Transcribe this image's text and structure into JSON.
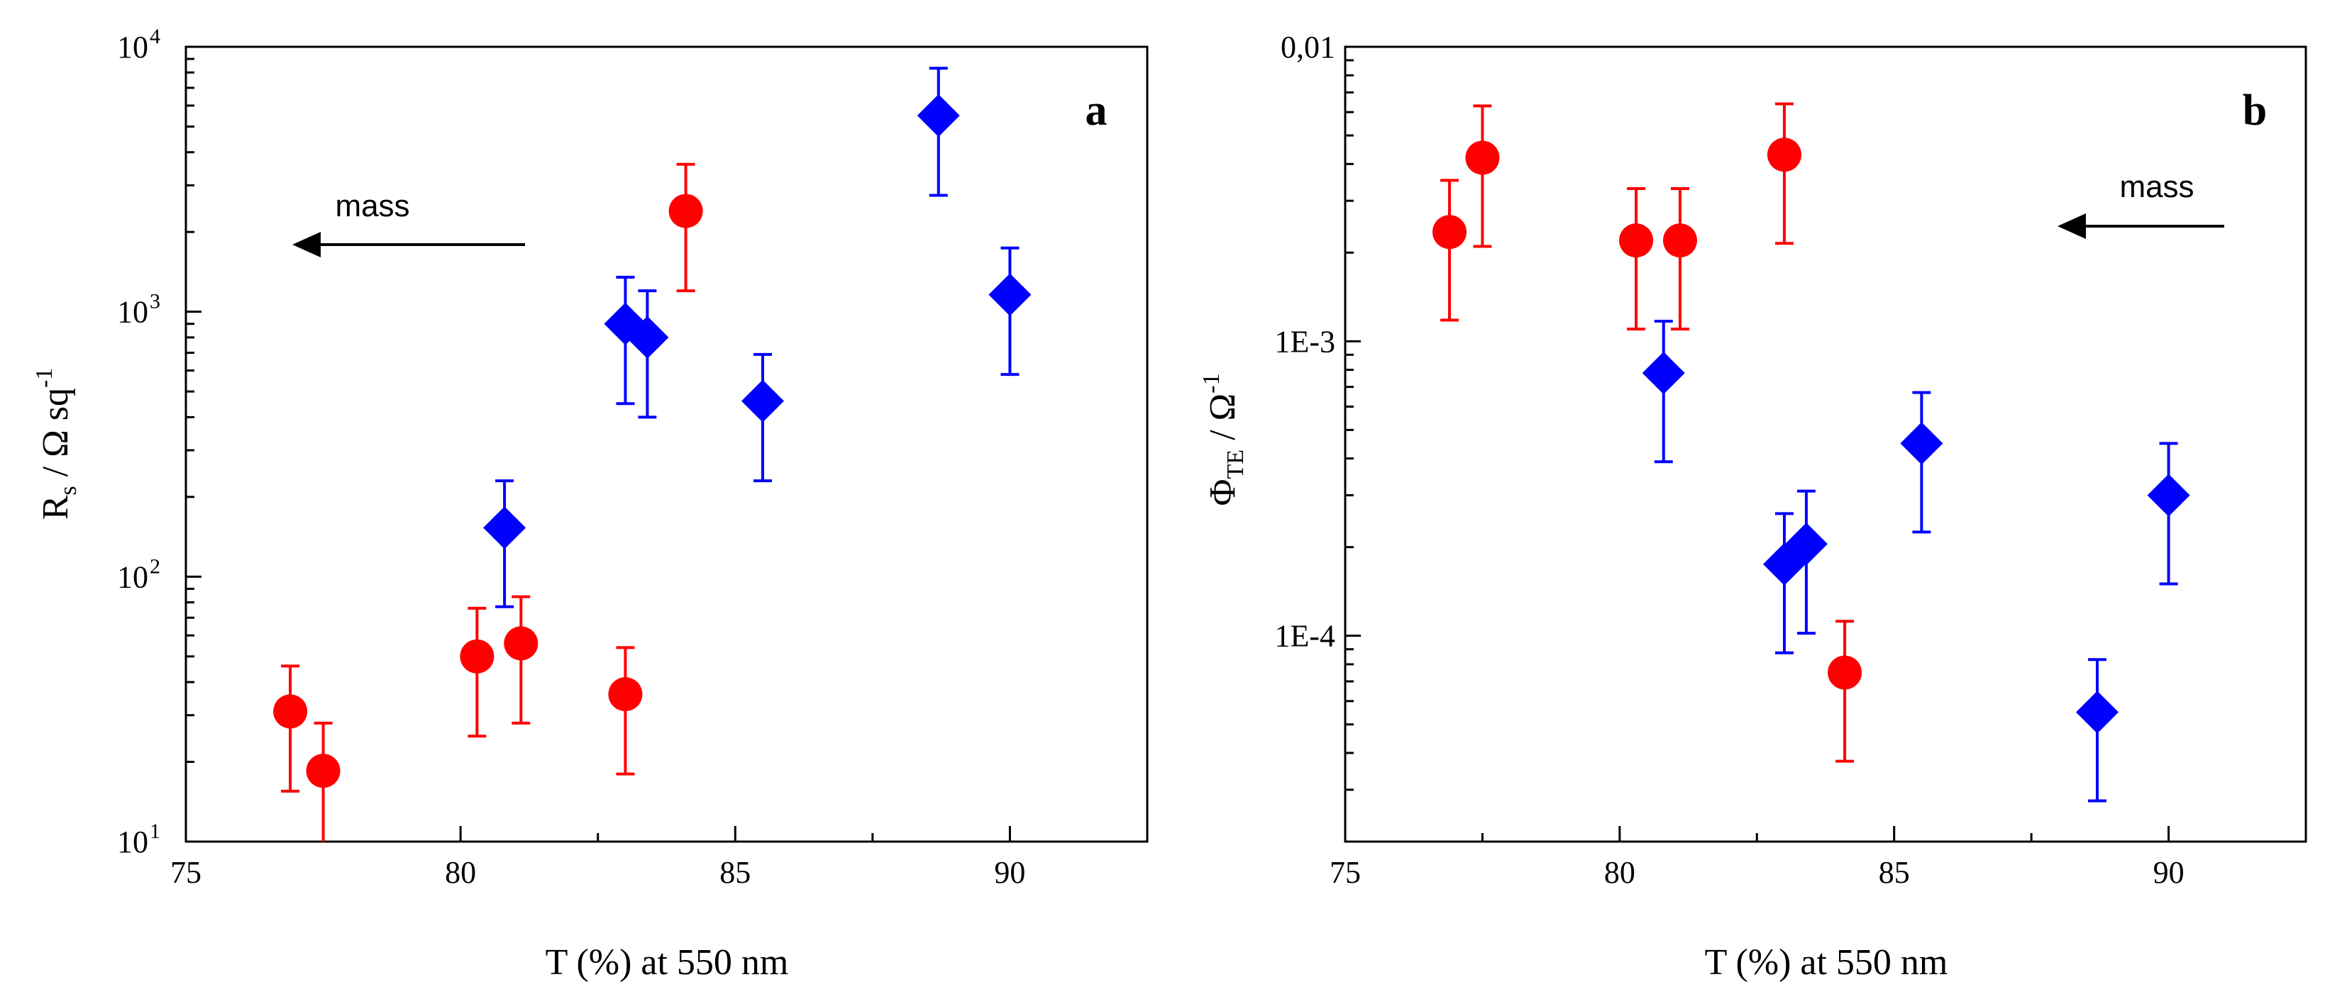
{
  "colors": {
    "red_series": "#ff0000",
    "blue_series": "#0000ff",
    "axis": "#000000",
    "background": "#ffffff"
  },
  "chart_data": [
    {
      "type": "scatter",
      "panel_label": "a",
      "xlabel": "T (%) at 550 nm",
      "ylabel_main": "R",
      "ylabel_sub": "s",
      "ylabel_rest": " / Ω sq",
      "ylabel_sup": "-1",
      "yscale": "log",
      "xlim": [
        75,
        92.5
      ],
      "ylim": [
        10,
        10000
      ],
      "xticks": [
        75,
        80,
        85,
        90
      ],
      "xtick_labels": [
        "75",
        "80",
        "85",
        "90"
      ],
      "yticks": [
        10,
        100,
        1000,
        10000
      ],
      "ytick_labels": [
        {
          "base": "10",
          "exp": "1"
        },
        {
          "base": "10",
          "exp": "2"
        },
        {
          "base": "10",
          "exp": "3"
        },
        {
          "base": "10",
          "exp": "4"
        }
      ],
      "annotation": "mass",
      "series": [
        {
          "name": "red circles",
          "marker": "circle",
          "color": "#ff0000",
          "points": [
            {
              "x": 76.9,
              "y": 31,
              "lo": 15.5,
              "hi": 46
            },
            {
              "x": 77.5,
              "y": 18.5,
              "lo": 9,
              "hi": 28
            },
            {
              "x": 80.3,
              "y": 50,
              "lo": 25,
              "hi": 76
            },
            {
              "x": 81.1,
              "y": 56,
              "lo": 28,
              "hi": 84
            },
            {
              "x": 83.0,
              "y": 36,
              "lo": 18,
              "hi": 54
            },
            {
              "x": 84.1,
              "y": 2400,
              "lo": 1200,
              "hi": 3600
            }
          ]
        },
        {
          "name": "blue diamonds",
          "marker": "diamond",
          "color": "#0000ff",
          "points": [
            {
              "x": 80.8,
              "y": 153,
              "lo": 77,
              "hi": 230
            },
            {
              "x": 83.0,
              "y": 900,
              "lo": 450,
              "hi": 1350
            },
            {
              "x": 83.4,
              "y": 800,
              "lo": 400,
              "hi": 1200
            },
            {
              "x": 85.5,
              "y": 460,
              "lo": 230,
              "hi": 690
            },
            {
              "x": 88.7,
              "y": 5500,
              "lo": 2750,
              "hi": 8300
            },
            {
              "x": 90.0,
              "y": 1160,
              "lo": 580,
              "hi": 1740
            }
          ]
        }
      ]
    },
    {
      "type": "scatter",
      "panel_label": "b",
      "xlabel": "T (%) at 550 nm",
      "ylabel_main": "Φ",
      "ylabel_sub": "TE",
      "ylabel_rest": " / Ω",
      "ylabel_sup": "-1",
      "yscale": "log",
      "xlim": [
        75,
        92.5
      ],
      "ylim": [
        2e-05,
        0.01
      ],
      "xticks": [
        75,
        80,
        85,
        90
      ],
      "xtick_labels": [
        "75",
        "80",
        "85",
        "90"
      ],
      "yticks": [
        0.0001,
        0.001,
        0.01
      ],
      "ytick_labels": [
        "1E-4",
        "1E-3",
        "0,01"
      ],
      "annotation": "mass",
      "series": [
        {
          "name": "red circles",
          "marker": "circle",
          "color": "#ff0000",
          "points": [
            {
              "x": 76.9,
              "y": 0.00235,
              "lo": 0.00118,
              "hi": 0.00352
            },
            {
              "x": 77.5,
              "y": 0.0042,
              "lo": 0.0021,
              "hi": 0.0063
            },
            {
              "x": 80.3,
              "y": 0.0022,
              "lo": 0.0011,
              "hi": 0.0033
            },
            {
              "x": 81.1,
              "y": 0.0022,
              "lo": 0.0011,
              "hi": 0.0033
            },
            {
              "x": 83.0,
              "y": 0.0043,
              "lo": 0.00215,
              "hi": 0.0064
            },
            {
              "x": 84.1,
              "y": 7.5e-05,
              "lo": 3.75e-05,
              "hi": 0.000112
            }
          ]
        },
        {
          "name": "blue diamonds",
          "marker": "diamond",
          "color": "#0000ff",
          "points": [
            {
              "x": 80.8,
              "y": 0.00078,
              "lo": 0.00039,
              "hi": 0.00117
            },
            {
              "x": 83.0,
              "y": 0.000175,
              "lo": 8.75e-05,
              "hi": 0.00026
            },
            {
              "x": 83.4,
              "y": 0.000205,
              "lo": 0.000102,
              "hi": 0.00031
            },
            {
              "x": 85.5,
              "y": 0.00045,
              "lo": 0.000225,
              "hi": 0.00067
            },
            {
              "x": 88.7,
              "y": 5.5e-05,
              "lo": 2.75e-05,
              "hi": 8.3e-05
            },
            {
              "x": 90.0,
              "y": 0.0003,
              "lo": 0.00015,
              "hi": 0.00045
            }
          ]
        }
      ]
    }
  ]
}
